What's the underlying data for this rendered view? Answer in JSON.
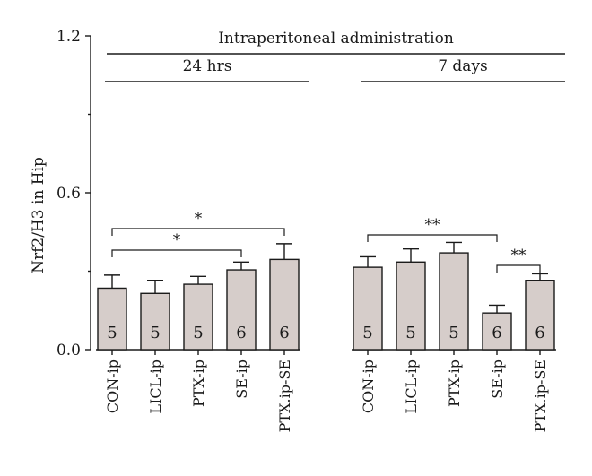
{
  "chart_data": {
    "type": "bar",
    "ylabel": "Nrf2/H3 in Hip",
    "ylim": [
      0.0,
      1.2
    ],
    "yticks": [
      "0.0",
      "0.6",
      "1.2"
    ],
    "header": "Intraperitoneal administration",
    "groups": [
      {
        "label": "24 hrs",
        "bars": [
          {
            "category": "CON-ip",
            "value": 0.235,
            "error": 0.05,
            "n": "5"
          },
          {
            "category": "LICL-ip",
            "value": 0.215,
            "error": 0.05,
            "n": "5"
          },
          {
            "category": "PTX-ip",
            "value": 0.25,
            "error": 0.03,
            "n": "5"
          },
          {
            "category": "SE-ip",
            "value": 0.305,
            "error": 0.03,
            "n": "6"
          },
          {
            "category": "PTX.ip-SE",
            "value": 0.345,
            "error": 0.06,
            "n": "6"
          }
        ],
        "significance": [
          {
            "from": 0,
            "to": 3,
            "label": "*"
          },
          {
            "from": 0,
            "to": 4,
            "label": "*"
          }
        ]
      },
      {
        "label": "7 days",
        "bars": [
          {
            "category": "CON-ip",
            "value": 0.315,
            "error": 0.04,
            "n": "5"
          },
          {
            "category": "LICL-ip",
            "value": 0.335,
            "error": 0.05,
            "n": "5"
          },
          {
            "category": "PTX-ip",
            "value": 0.37,
            "error": 0.04,
            "n": "5"
          },
          {
            "category": "SE-ip",
            "value": 0.14,
            "error": 0.03,
            "n": "6"
          },
          {
            "category": "PTX.ip-SE",
            "value": 0.265,
            "error": 0.025,
            "n": "6"
          }
        ],
        "significance": [
          {
            "from": 0,
            "to": 3,
            "label": "**"
          },
          {
            "from": 3,
            "to": 4,
            "label": "**"
          }
        ]
      }
    ]
  }
}
